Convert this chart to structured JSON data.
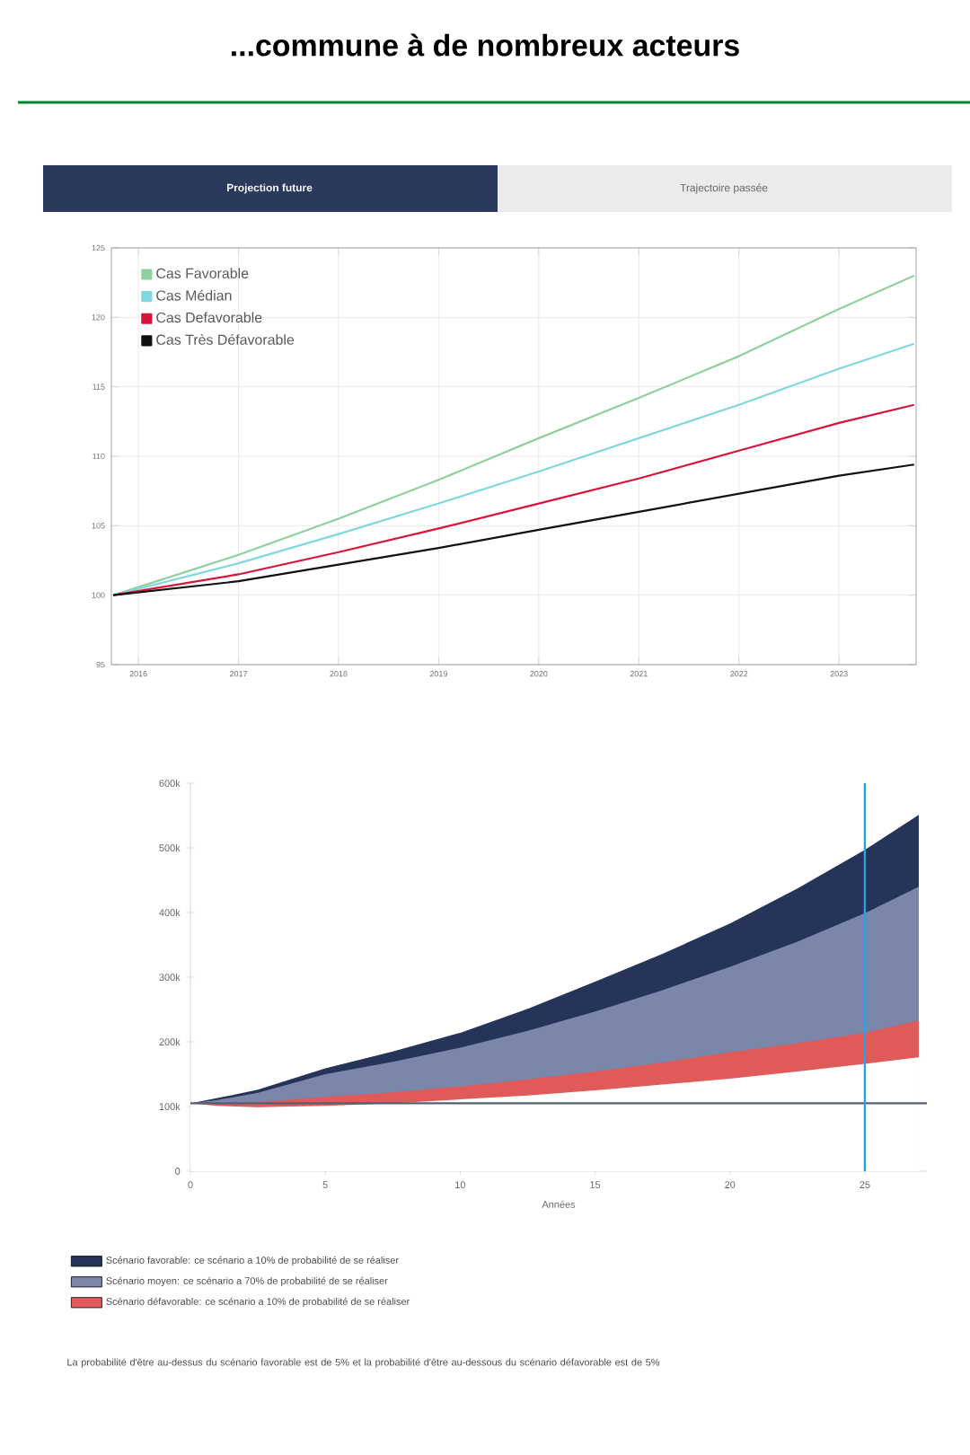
{
  "chart_data": [
    {
      "type": "line",
      "title": "...commune à de nombreux acteurs",
      "annotations": [
        "Projection future",
        "Trajectoire passée"
      ],
      "x": [
        2015.75,
        2017,
        2018,
        2019,
        2020,
        2021,
        2022,
        2023,
        2023.75
      ],
      "xlim": [
        2015.73,
        2023.77
      ],
      "xticks": [
        2016,
        2017,
        2018,
        2019,
        2020,
        2021,
        2022,
        2023
      ],
      "ylim": [
        95,
        125
      ],
      "yticks": [
        95,
        100,
        105,
        110,
        115,
        120,
        125
      ],
      "grid": true,
      "legend": "top left",
      "series": [
        {
          "name": "Cas Favorable",
          "color": "#8fd19e",
          "values": [
            100,
            102.9,
            105.5,
            108.3,
            111.3,
            114.2,
            117.2,
            120.6,
            123.0
          ]
        },
        {
          "name": "Cas Médian",
          "color": "#7fd8e0",
          "values": [
            100,
            102.3,
            104.4,
            106.6,
            108.9,
            111.3,
            113.7,
            116.3,
            118.1
          ]
        },
        {
          "name": "Cas Defavorable",
          "color": "#d9143a",
          "values": [
            100,
            101.5,
            103.1,
            104.8,
            106.6,
            108.4,
            110.4,
            112.4,
            113.7
          ]
        },
        {
          "name": "Cas Très Défavorable",
          "color": "#111111",
          "values": [
            100,
            101.0,
            102.2,
            103.4,
            104.7,
            106.0,
            107.3,
            108.6,
            109.4
          ]
        }
      ]
    },
    {
      "type": "area",
      "xlabel": "Années",
      "x": [
        0,
        1,
        2.5,
        5,
        7.5,
        10,
        12.5,
        15,
        17.5,
        20,
        22.5,
        25,
        27
      ],
      "xlim": [
        0,
        27.3
      ],
      "xticks": [
        0,
        5,
        10,
        15,
        20,
        25
      ],
      "ylim": [
        0,
        600000
      ],
      "yticks": [
        0,
        {
          "value": 100000,
          "label": "100k"
        },
        {
          "value": 200000,
          "label": "200k"
        },
        {
          "value": 300000,
          "label": "300k"
        },
        {
          "value": 400000,
          "label": "400k"
        },
        {
          "value": 500000,
          "label": "500k"
        },
        {
          "value": 600000,
          "label": "600k"
        }
      ],
      "legend": "bottom",
      "series": [
        {
          "name": "Scénario favorable: ce scénario a 10% de probabilité de se réaliser",
          "color": "#263459",
          "values": [
            105000,
            113000,
            126000,
            159000,
            185000,
            214000,
            251000,
            293000,
            336000,
            383000,
            437000,
            497000,
            551000
          ]
        },
        {
          "name": "Scénario moyen: ce scénario a 70% de probabilité de se réaliser",
          "color": "#7a87aa",
          "values": [
            105000,
            110000,
            121000,
            150000,
            169000,
            191000,
            217000,
            247000,
            280000,
            316000,
            355000,
            399000,
            440000
          ]
        },
        {
          "name": "Scénario défavorable: ce scénario a 10% de probabilité de se réaliser",
          "color": "#e05a5a",
          "values": [
            105000,
            104000,
            107000,
            115000,
            122000,
            131000,
            142000,
            154000,
            168000,
            184000,
            198000,
            214000,
            233000
          ]
        },
        {
          "color": "#ffffff",
          "values": [
            105000,
            101000,
            99000,
            101000,
            105000,
            111000,
            117000,
            125000,
            134000,
            143000,
            154000,
            166000,
            176000
          ]
        }
      ],
      "ref_lines": [
        {
          "axis": "y",
          "value": 105000,
          "color": "#555f70"
        },
        {
          "axis": "x",
          "value": 25,
          "color": "#2aa0e8"
        }
      ],
      "annotations": [
        "La probabilité d'être au-dessus du scénario favorable est de 5% et la probabilité d'être au-dessous du scénario défavorable est de 5%"
      ]
    }
  ]
}
